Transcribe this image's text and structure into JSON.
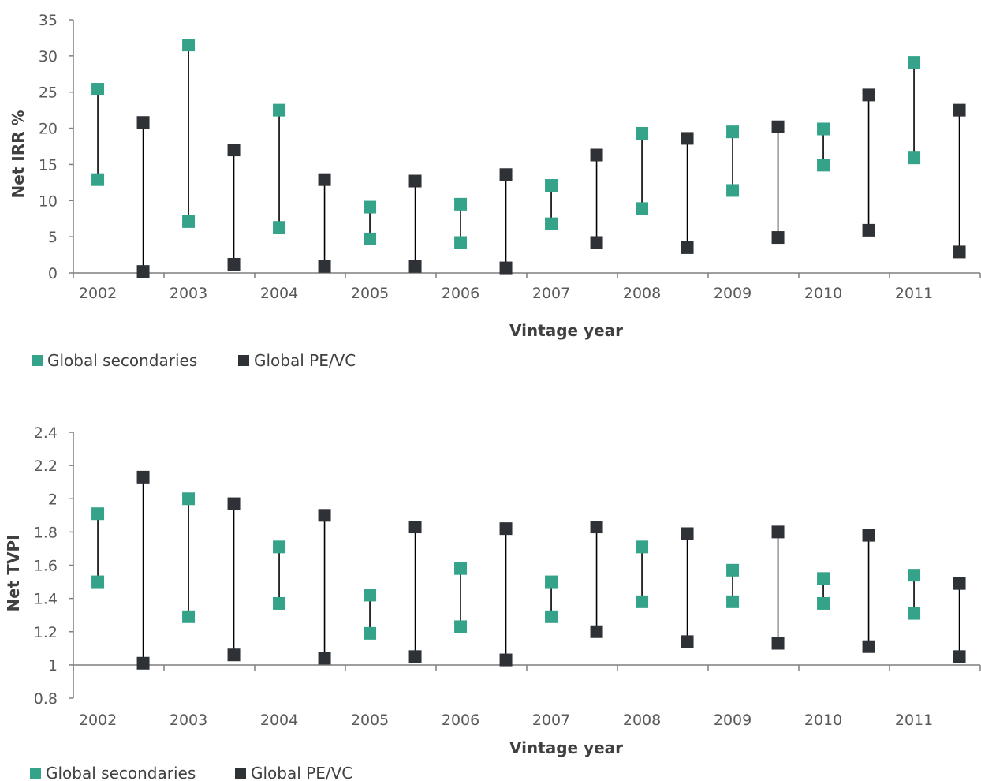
{
  "colors": {
    "secondaries": "#35a38a",
    "pevc": "#2e3136",
    "axis": "#7f7f7f",
    "text": "#595959"
  },
  "chart_data": [
    {
      "type": "range-dot",
      "ylabel": "Net IRR %",
      "xlabel": "Vintage year",
      "ylim": [
        0,
        35
      ],
      "yticks": [
        "0",
        "5",
        "10",
        "15",
        "20",
        "25",
        "30",
        "35"
      ],
      "categories": [
        "2002",
        "2003",
        "2004",
        "2005",
        "2006",
        "2007",
        "2008",
        "2009",
        "2010",
        "2011"
      ],
      "legend": [
        "Global secondaries",
        "Global PE/VC"
      ],
      "legend_position": "bottom-left",
      "series": [
        {
          "name": "Global secondaries",
          "low": [
            12.9,
            7.1,
            6.3,
            4.7,
            4.2,
            6.8,
            8.9,
            11.4,
            14.9,
            15.9
          ],
          "high": [
            25.4,
            31.5,
            22.5,
            9.1,
            9.5,
            12.1,
            19.3,
            19.5,
            19.9,
            29.1
          ]
        },
        {
          "name": "Global PE/VC",
          "low": [
            0.2,
            1.2,
            0.9,
            0.9,
            0.7,
            4.2,
            3.5,
            4.9,
            5.9,
            2.9
          ],
          "high": [
            20.8,
            17.0,
            12.9,
            12.7,
            13.6,
            16.3,
            18.6,
            20.2,
            24.6,
            22.5
          ]
        }
      ]
    },
    {
      "type": "range-dot",
      "ylabel": "Net TVPI",
      "xlabel": "Vintage year",
      "ylim": [
        0.8,
        2.4
      ],
      "yticks": [
        "0.8",
        "1",
        "1.2",
        "1.4",
        "1.6",
        "1.8",
        "2",
        "2.2",
        "2.4"
      ],
      "categories": [
        "2002",
        "2003",
        "2004",
        "2005",
        "2006",
        "2007",
        "2008",
        "2009",
        "2010",
        "2011"
      ],
      "legend": [
        "Global secondaries",
        "Global PE/VC"
      ],
      "legend_position": "bottom-left",
      "series": [
        {
          "name": "Global secondaries",
          "low": [
            1.5,
            1.29,
            1.37,
            1.19,
            1.23,
            1.29,
            1.38,
            1.38,
            1.37,
            1.31
          ],
          "high": [
            1.91,
            2.0,
            1.71,
            1.42,
            1.58,
            1.5,
            1.71,
            1.57,
            1.52,
            1.54
          ]
        },
        {
          "name": "Global PE/VC",
          "low": [
            1.01,
            1.06,
            1.04,
            1.05,
            1.03,
            1.2,
            1.14,
            1.13,
            1.11,
            1.05
          ],
          "high": [
            2.13,
            1.97,
            1.9,
            1.83,
            1.82,
            1.83,
            1.79,
            1.8,
            1.78,
            1.49
          ]
        }
      ]
    }
  ]
}
